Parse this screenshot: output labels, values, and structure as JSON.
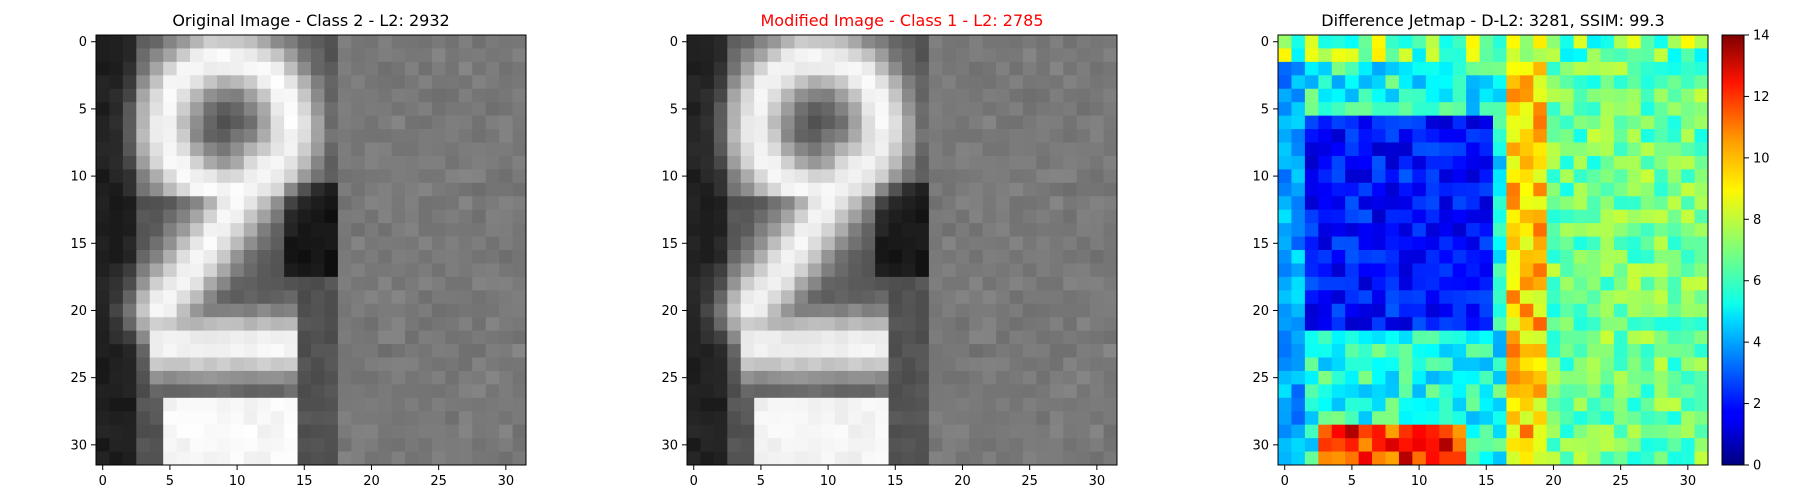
{
  "chart_data": [
    {
      "type": "heatmap",
      "title": "Original Image - Class 2 - L2: 2932",
      "title_color": "#000000",
      "colormap": "gray",
      "xlim": [
        -0.5,
        31.5
      ],
      "ylim": [
        31.5,
        -0.5
      ],
      "x_ticks": [
        0,
        5,
        10,
        15,
        20,
        25,
        30
      ],
      "y_ticks": [
        0,
        5,
        10,
        15,
        20,
        25,
        30
      ],
      "grid_size": [
        32,
        32
      ]
    },
    {
      "type": "heatmap",
      "title": "Modified Image - Class 1 - L2: 2785",
      "title_color": "#ff0000",
      "colormap": "gray",
      "xlim": [
        -0.5,
        31.5
      ],
      "ylim": [
        31.5,
        -0.5
      ],
      "x_ticks": [
        0,
        5,
        10,
        15,
        20,
        25,
        30
      ],
      "y_ticks": [
        0,
        5,
        10,
        15,
        20,
        25,
        30
      ],
      "grid_size": [
        32,
        32
      ]
    },
    {
      "type": "heatmap",
      "title": "Difference Jetmap - D-L2: 3281, SSIM: 99.3",
      "title_color": "#000000",
      "colormap": "jet",
      "xlim": [
        -0.5,
        31.5
      ],
      "ylim": [
        31.5,
        -0.5
      ],
      "x_ticks": [
        0,
        5,
        10,
        15,
        20,
        25,
        30
      ],
      "y_ticks": [
        0,
        5,
        10,
        15,
        20,
        25,
        30
      ],
      "grid_size": [
        32,
        32
      ],
      "colorbar": {
        "min": 0,
        "max": 14,
        "ticks": [
          0,
          2,
          4,
          6,
          8,
          10,
          12,
          14
        ]
      }
    }
  ]
}
